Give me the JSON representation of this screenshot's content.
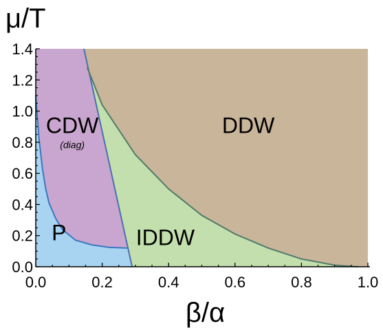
{
  "chart_data": {
    "type": "area",
    "title": "",
    "xlabel": "β/α",
    "ylabel": "μ/T",
    "xlim": [
      0.0,
      1.0
    ],
    "ylim": [
      0.0,
      1.4
    ],
    "x_ticks": [
      "0.0",
      "0.2",
      "0.4",
      "0.6",
      "0.8",
      "1.0"
    ],
    "y_ticks": [
      "0.0",
      "0.2",
      "0.4",
      "0.6",
      "0.8",
      "1.0",
      "1.2",
      "1.4"
    ],
    "grid": false,
    "regions": [
      {
        "name": "P",
        "sublabel": "",
        "color": "#a8d4f2",
        "label_at": [
          0.07,
          0.17
        ]
      },
      {
        "name": "CDW",
        "sublabel": "(diag)",
        "color": "#c9a6cf",
        "label_at": [
          0.11,
          0.86
        ]
      },
      {
        "name": "IDDW",
        "sublabel": "",
        "color": "#c3dfad",
        "label_at": [
          0.39,
          0.14
        ]
      },
      {
        "name": "DDW",
        "sublabel": "",
        "color": "#c9b59a",
        "label_at": [
          0.64,
          0.86
        ]
      }
    ],
    "boundaries": [
      {
        "between": [
          "P",
          "CDW"
        ],
        "color": "#3a78c0",
        "points": [
          [
            0.0,
            1.1
          ],
          [
            0.01,
            0.82
          ],
          [
            0.02,
            0.63
          ],
          [
            0.03,
            0.5
          ],
          [
            0.04,
            0.41
          ],
          [
            0.06,
            0.31
          ],
          [
            0.08,
            0.24
          ],
          [
            0.12,
            0.17
          ],
          [
            0.17,
            0.14
          ],
          [
            0.22,
            0.125
          ],
          [
            0.27,
            0.12
          ]
        ]
      },
      {
        "between": [
          "CDW",
          "IDDW"
        ],
        "color": "#4a6fb0",
        "points": [
          [
            0.145,
            1.4
          ],
          [
            0.29,
            0.0
          ]
        ]
      },
      {
        "between": [
          "IDDW",
          "DDW"
        ],
        "color": "#4f7a6a",
        "points": [
          [
            0.155,
            1.28
          ],
          [
            0.2,
            1.04
          ],
          [
            0.3,
            0.72
          ],
          [
            0.4,
            0.5
          ],
          [
            0.5,
            0.33
          ],
          [
            0.6,
            0.21
          ],
          [
            0.7,
            0.12
          ],
          [
            0.8,
            0.05
          ],
          [
            0.9,
            0.01
          ],
          [
            0.97,
            0.0
          ]
        ]
      }
    ]
  }
}
